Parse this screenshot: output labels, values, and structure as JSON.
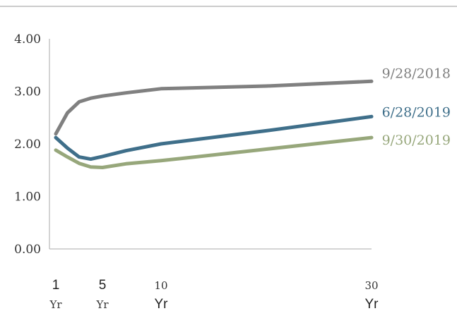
{
  "chart_data": {
    "type": "line",
    "title": "",
    "xlabel": "",
    "ylabel": "",
    "ylim": [
      0,
      4
    ],
    "yticks": [
      "0.00",
      "1.00",
      "2.00",
      "3.00",
      "4.00"
    ],
    "xticks": [
      {
        "line1": "1",
        "line2": "Yr",
        "style1": "sans",
        "style2": "serif"
      },
      {
        "line1": "5",
        "line2": "Yr",
        "style1": "sans",
        "style2": "serif"
      },
      {
        "line1": "10",
        "line2": "Yr",
        "style1": "serif",
        "style2": "sans"
      },
      {
        "line1": "30",
        "line2": "Yr",
        "style1": "serif",
        "style2": "sans"
      }
    ],
    "grid": false,
    "x": [
      1,
      2,
      3,
      4,
      5,
      7,
      10,
      20,
      30
    ],
    "series": [
      {
        "name": "9/28/2018",
        "color": "#808080",
        "values": [
          2.19,
          2.59,
          2.8,
          2.87,
          2.91,
          2.97,
          3.05,
          3.1,
          3.19
        ]
      },
      {
        "name": "6/28/2019",
        "color": "#3f6f8a",
        "values": [
          2.12,
          1.92,
          1.75,
          1.71,
          1.76,
          1.87,
          2.0,
          2.25,
          2.52
        ]
      },
      {
        "name": "9/30/2019",
        "color": "#97a77b",
        "values": [
          1.88,
          1.75,
          1.63,
          1.56,
          1.55,
          1.62,
          1.68,
          1.9,
          2.12
        ]
      }
    ]
  }
}
